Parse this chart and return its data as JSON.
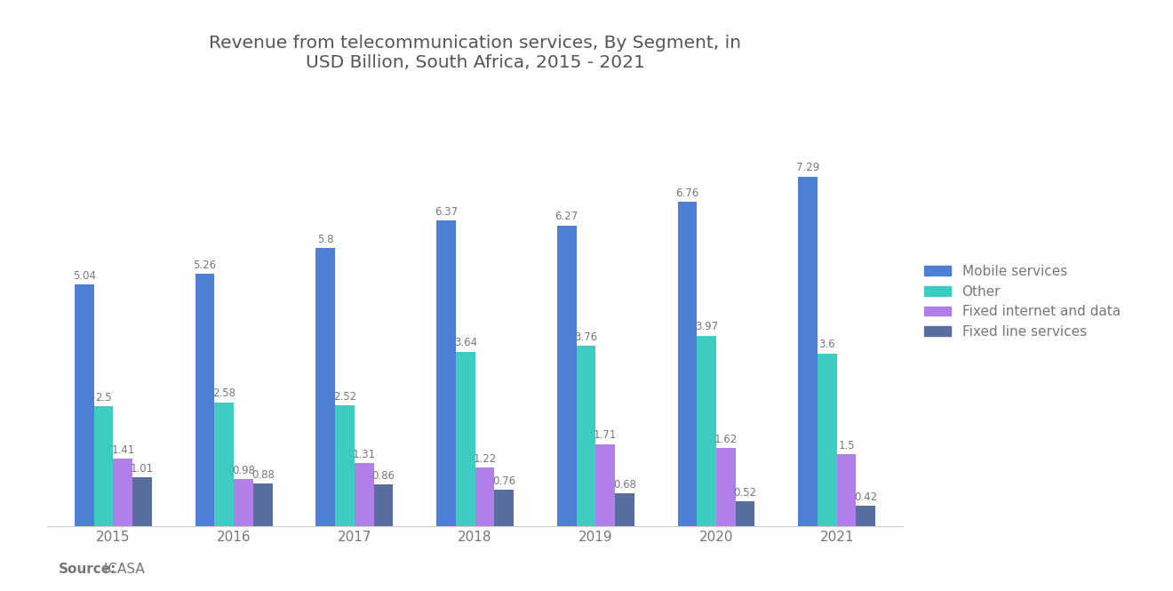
{
  "title": "Revenue from telecommunication services, By Segment, in\nUSD Billion, South Africa, 2015 - 2021",
  "years": [
    2015,
    2016,
    2017,
    2018,
    2019,
    2020,
    2021
  ],
  "segments": [
    "Mobile services",
    "Other",
    "Fixed internet and data",
    "Fixed line services"
  ],
  "colors": [
    "#4D7FD4",
    "#3DCCC0",
    "#B07FE8",
    "#596E9E"
  ],
  "data": {
    "Mobile services": [
      5.04,
      5.26,
      5.8,
      6.37,
      6.27,
      6.76,
      7.29
    ],
    "Other": [
      2.5,
      2.58,
      2.52,
      3.64,
      3.76,
      3.97,
      3.6
    ],
    "Fixed internet and data": [
      1.41,
      0.98,
      1.31,
      1.22,
      1.71,
      1.62,
      1.5
    ],
    "Fixed line services": [
      1.01,
      0.88,
      0.86,
      0.76,
      0.68,
      0.52,
      0.42
    ]
  },
  "source_bold": "Source:",
  "source_normal": " ICASA",
  "background_color": "#FFFFFF",
  "bar_width": 0.16,
  "ylim": [
    0,
    9.0
  ],
  "label_color": "#777777",
  "title_color": "#555555",
  "title_fontsize": 14.5,
  "label_fontsize": 8.5,
  "tick_fontsize": 11,
  "legend_fontsize": 11,
  "source_fontsize": 11
}
